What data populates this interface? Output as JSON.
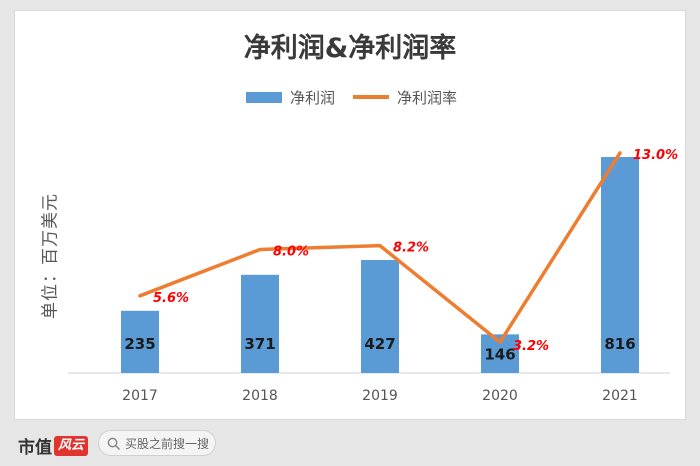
{
  "chart_data": {
    "type": "bar",
    "title": "净利润&净利润率",
    "ylabel": "单位：百万美元",
    "categories": [
      "2017",
      "2018",
      "2019",
      "2020",
      "2021"
    ],
    "series": [
      {
        "name": "净利润",
        "type": "bar",
        "values": [
          235,
          371,
          427,
          146,
          816
        ],
        "color": "#5b9bd5"
      },
      {
        "name": "净利润率",
        "type": "line",
        "values": [
          5.6,
          8.0,
          8.2,
          3.2,
          13.0
        ],
        "labels": [
          "5.6%",
          "8.0%",
          "8.2%",
          "3.2%",
          "13.0%"
        ],
        "color": "#ed7d31"
      }
    ],
    "legend": "top",
    "grid": false,
    "colors": {
      "bar": "#5b9bd5",
      "line": "#ed7d31",
      "line_label": "#ff0000"
    }
  },
  "footer": {
    "logo_text": "市值",
    "logo_mark": "风云",
    "search_placeholder": "买股之前搜一搜"
  }
}
